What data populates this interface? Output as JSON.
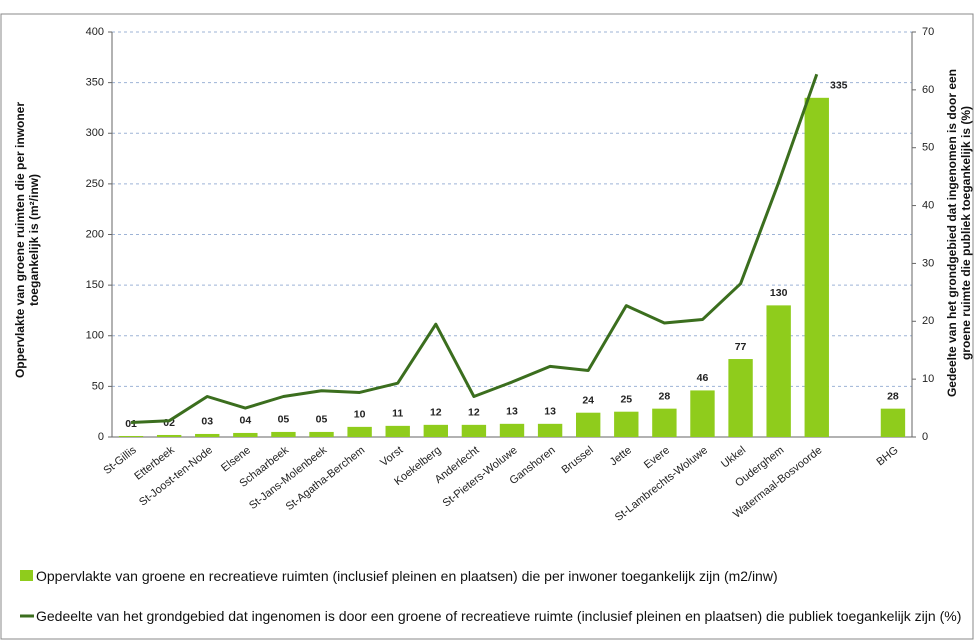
{
  "chart_data": {
    "type": "bar-line",
    "ylabel": "Oppervlakte van groene ruimten die per inwoner toegankelijk is (m²/inw)",
    "y2label": "Gedeelte van het grondgebied dat ingenomen is door een groene ruimte die publiek toegankelijk is (%)",
    "categories": [
      "St-Gillis",
      "Etterbeek",
      "St-Joost-ten-Node",
      "Elsene",
      "Schaarbeek",
      "St-Jans-Molenbeek",
      "St-Agatha-Berchem",
      "Vorst",
      "Koekelberg",
      "Anderlecht",
      "St-Pieters-Woluwe",
      "Ganshoren",
      "Brussel",
      "Jette",
      "Evere",
      "St-Lambrechts-Woluwe",
      "Ukkel",
      "Ouderghem",
      "Watermaal-Bosvoorde",
      null,
      "BHG"
    ],
    "series": [
      {
        "name": "Oppervlakte van groene en recreatieve ruimten (inclusief pleinen en plaatsen) die per inwoner toegankelijk zijn (m2/inw)",
        "color": "#8fcc1c",
        "kind": "bar",
        "values": [
          1,
          2,
          3,
          4,
          5,
          5,
          10,
          11,
          12,
          12,
          13,
          13,
          24,
          25,
          28,
          46,
          77,
          130,
          335,
          null,
          28
        ],
        "value_labels": [
          "01",
          "02",
          "03",
          "04",
          "05",
          "05",
          "10",
          "11",
          "12",
          "12",
          "13",
          "13",
          "24",
          "25",
          "28",
          "46",
          "77",
          "130",
          "335",
          null,
          "28"
        ]
      },
      {
        "name": "Gedeelte van het grondgebied dat ingenomen is door een groene of recreatieve ruimte (inclusief pleinen en plaatsen) die publiek toegankelijk zijn (%)",
        "color": "#3b6e1e",
        "kind": "line",
        "axis": "y2",
        "values": [
          2.5,
          2.8,
          7,
          5,
          7,
          8,
          7.7,
          9.3,
          19.5,
          7,
          9.5,
          12.2,
          11.5,
          22.7,
          19.7,
          20.3,
          26.5,
          44,
          62.7,
          null,
          null
        ]
      }
    ],
    "ylim": [
      0,
      400
    ],
    "yticks": [
      0,
      50,
      100,
      150,
      200,
      250,
      300,
      350,
      400
    ],
    "y2lim": [
      0,
      70
    ],
    "y2ticks": [
      0,
      10,
      20,
      30,
      40,
      50,
      60,
      70
    ],
    "grid": true
  }
}
